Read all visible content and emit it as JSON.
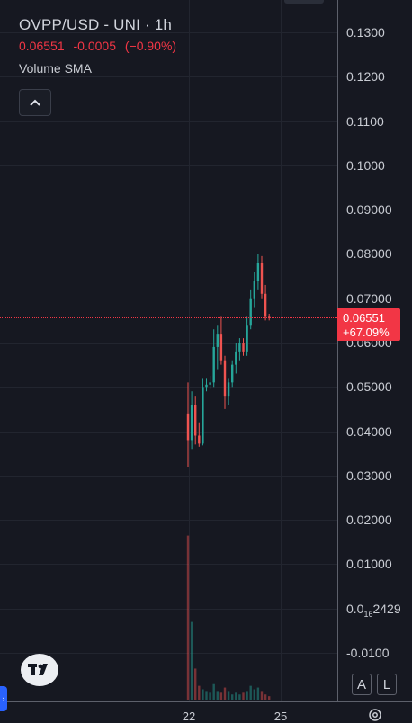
{
  "legend": {
    "symbol": "OVPP/USD - UNI · 1h",
    "last_price": "0.06551",
    "change": "-0.0005",
    "change_pct": "(−0.90%)",
    "indicator": "Volume SMA"
  },
  "price_badge": {
    "price": "0.06551",
    "change_pct": "+67.09%"
  },
  "colors": {
    "background": "#161821",
    "up": "#26a69a",
    "down": "#ef5350",
    "badge": "#f23645",
    "axis_text": "#c9ccd3"
  },
  "price_axis": {
    "labels": [
      "0.1300",
      "0.1200",
      "0.1100",
      "0.1000",
      "0.09000",
      "0.08000",
      "0.07000",
      "0.06000",
      "0.05000",
      "0.04000",
      "0.03000",
      "0.02000",
      "0.01000",
      "-0.0100"
    ],
    "compressed_zero_label": {
      "prefix": "0.0",
      "sub": "16",
      "suffix": "2429"
    }
  },
  "time_axis": {
    "labels": [
      "22",
      "25"
    ]
  },
  "buttons": {
    "auto_scale": "A",
    "log_scale": "L"
  },
  "icons": {
    "collapse": "chevron-up-icon",
    "logo": "tradingview-logo-icon",
    "settings": "gear-icon",
    "left_tab": "chevron-right-icon"
  },
  "chart_data": {
    "type": "candlestick",
    "symbol": "OVPP/USD",
    "interval": "1h",
    "ylim": [
      -0.0125,
      0.1355
    ],
    "candles": [
      {
        "o": 0.044,
        "h": 0.051,
        "l": 0.032,
        "c": 0.038
      },
      {
        "o": 0.038,
        "h": 0.049,
        "l": 0.036,
        "c": 0.046
      },
      {
        "o": 0.046,
        "h": 0.048,
        "l": 0.037,
        "c": 0.039
      },
      {
        "o": 0.039,
        "h": 0.042,
        "l": 0.0365,
        "c": 0.0372
      },
      {
        "o": 0.0372,
        "h": 0.052,
        "l": 0.0368,
        "c": 0.05
      },
      {
        "o": 0.05,
        "h": 0.052,
        "l": 0.049,
        "c": 0.0505
      },
      {
        "o": 0.0505,
        "h": 0.0525,
        "l": 0.0495,
        "c": 0.051
      },
      {
        "o": 0.051,
        "h": 0.063,
        "l": 0.05,
        "c": 0.059
      },
      {
        "o": 0.059,
        "h": 0.064,
        "l": 0.054,
        "c": 0.062
      },
      {
        "o": 0.062,
        "h": 0.066,
        "l": 0.055,
        "c": 0.056
      },
      {
        "o": 0.056,
        "h": 0.057,
        "l": 0.045,
        "c": 0.048
      },
      {
        "o": 0.048,
        "h": 0.052,
        "l": 0.046,
        "c": 0.051
      },
      {
        "o": 0.051,
        "h": 0.056,
        "l": 0.05,
        "c": 0.055
      },
      {
        "o": 0.055,
        "h": 0.06,
        "l": 0.053,
        "c": 0.058
      },
      {
        "o": 0.058,
        "h": 0.061,
        "l": 0.056,
        "c": 0.06
      },
      {
        "o": 0.06,
        "h": 0.061,
        "l": 0.057,
        "c": 0.058
      },
      {
        "o": 0.058,
        "h": 0.066,
        "l": 0.057,
        "c": 0.064
      },
      {
        "o": 0.064,
        "h": 0.072,
        "l": 0.063,
        "c": 0.07
      },
      {
        "o": 0.07,
        "h": 0.076,
        "l": 0.068,
        "c": 0.074
      },
      {
        "o": 0.074,
        "h": 0.08,
        "l": 0.072,
        "c": 0.078
      },
      {
        "o": 0.078,
        "h": 0.0795,
        "l": 0.07,
        "c": 0.071
      },
      {
        "o": 0.071,
        "h": 0.073,
        "l": 0.065,
        "c": 0.066
      },
      {
        "o": 0.066,
        "h": 0.0665,
        "l": 0.065,
        "c": 0.06551
      }
    ],
    "volume": [
      0.95,
      0.45,
      0.18,
      0.08,
      0.06,
      0.05,
      0.04,
      0.09,
      0.05,
      0.04,
      0.07,
      0.05,
      0.03,
      0.04,
      0.03,
      0.04,
      0.05,
      0.08,
      0.06,
      0.07,
      0.05,
      0.03,
      0.02
    ]
  }
}
